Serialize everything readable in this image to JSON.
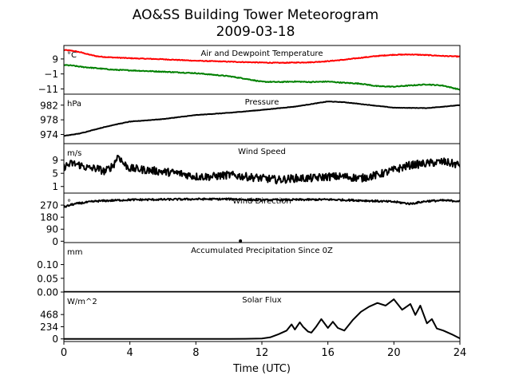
{
  "figure": {
    "title_line1": "AO&SS Building Tower Meteorogram",
    "title_line2": "2009-03-18",
    "xlabel": "Time (UTC)",
    "xticks": [
      0,
      4,
      8,
      12,
      16,
      20,
      24
    ],
    "xlim": [
      0,
      24
    ]
  },
  "chart_data": [
    {
      "type": "line",
      "title": "Air and Dewpoint Temperature",
      "unit": "°C",
      "ylim": [
        -14.5,
        18
      ],
      "yticks": [
        {
          "v": 9,
          "t": "9"
        },
        {
          "v": -1,
          "t": "−1"
        },
        {
          "v": -11,
          "t": "−11"
        }
      ],
      "grid": false,
      "series": [
        {
          "color": "#ff0000",
          "noise": 0.25,
          "x": [
            0,
            0.5,
            1,
            1.5,
            2,
            2.5,
            3,
            4,
            6,
            8,
            10,
            12,
            13,
            14,
            15,
            16,
            17,
            18,
            19,
            20,
            21,
            22,
            23,
            24
          ],
          "values": [
            15,
            14.5,
            13.5,
            12,
            10.8,
            10.3,
            10,
            9.5,
            8.8,
            7.8,
            7.2,
            6.6,
            6.4,
            6.6,
            6.8,
            7.5,
            8.5,
            9.8,
            11,
            11.8,
            12,
            11.6,
            11,
            10.6
          ]
        },
        {
          "color": "#008000",
          "noise": 0.3,
          "x": [
            0,
            0.5,
            1,
            2,
            3,
            4,
            6,
            8,
            9,
            10,
            11,
            12,
            13,
            14,
            15,
            16,
            17,
            18,
            19,
            20,
            21,
            22,
            23,
            24
          ],
          "values": [
            5,
            4.6,
            3.8,
            2.8,
            1.8,
            1.4,
            0.5,
            -0.5,
            -1.5,
            -2.5,
            -4.2,
            -6.2,
            -6.4,
            -6.1,
            -6.4,
            -6.1,
            -6.9,
            -7.5,
            -9.2,
            -9.5,
            -8.7,
            -8,
            -8.8,
            -11.5
          ]
        }
      ]
    },
    {
      "type": "line",
      "title": "Pressure",
      "unit": "hPa",
      "ylim": [
        971.5,
        985
      ],
      "yticks": [
        {
          "v": 982,
          "t": "982"
        },
        {
          "v": 978,
          "t": "978"
        },
        {
          "v": 974,
          "t": "974"
        }
      ],
      "grid": false,
      "series": [
        {
          "color": "#000000",
          "noise": 0.05,
          "x": [
            0,
            1,
            2,
            3,
            4,
            6,
            8,
            10,
            12,
            14,
            16,
            17,
            18,
            20,
            22,
            24
          ],
          "values": [
            973.6,
            974.3,
            975.5,
            976.6,
            977.5,
            978.2,
            979.3,
            979.9,
            980.7,
            981.6,
            983,
            982.8,
            982.3,
            981.3,
            981.2,
            982
          ]
        }
      ]
    },
    {
      "type": "line",
      "title": "Wind Speed",
      "unit": "m/s",
      "ylim": [
        -1,
        14
      ],
      "yticks": [
        {
          "v": 9,
          "t": "9"
        },
        {
          "v": 5,
          "t": "5"
        },
        {
          "v": 1,
          "t": "1"
        }
      ],
      "grid": false,
      "series": [
        {
          "color": "#000000",
          "noise": 1.2,
          "x": [
            0,
            0.5,
            1,
            1.5,
            2,
            2.5,
            3,
            3.3,
            3.6,
            4,
            5,
            6,
            7,
            8,
            9,
            10,
            11,
            12,
            13,
            14,
            15,
            16,
            17,
            18,
            19,
            20,
            21,
            22,
            23,
            24
          ],
          "values": [
            7,
            8,
            7.5,
            6.5,
            6.5,
            5.5,
            7.5,
            10.5,
            8,
            6.5,
            6,
            5.5,
            5,
            4,
            4,
            4.5,
            4,
            3.5,
            3,
            3.5,
            3.5,
            4,
            4,
            3.5,
            4.5,
            6,
            7.5,
            8,
            8.5,
            7.5
          ]
        }
      ]
    },
    {
      "type": "line",
      "title": "Wind Direction",
      "unit": "°",
      "ylim": [
        -10,
        360
      ],
      "yticks": [
        {
          "v": 270,
          "t": "270"
        },
        {
          "v": 180,
          "t": "180"
        },
        {
          "v": 90,
          "t": "90"
        },
        {
          "v": 0,
          "t": "0"
        }
      ],
      "grid": false,
      "series": [
        {
          "color": "#000000",
          "noise": 7,
          "x": [
            0,
            0.5,
            1,
            2,
            3,
            4,
            6,
            8,
            10,
            12,
            14,
            16,
            18,
            19,
            20,
            21,
            22,
            23,
            24
          ],
          "values": [
            255,
            275,
            285,
            300,
            305,
            310,
            312,
            315,
            315,
            308,
            310,
            312,
            305,
            300,
            295,
            280,
            300,
            305,
            300
          ]
        }
      ],
      "points": [
        {
          "x": 10.7,
          "y": 2
        }
      ]
    },
    {
      "type": "line",
      "title": "Accumulated Precipitation Since 0Z",
      "unit": "mm",
      "ylim": [
        0,
        0.18
      ],
      "yticks": [
        {
          "v": 0.1,
          "t": "0.10"
        },
        {
          "v": 0.05,
          "t": "0.05"
        },
        {
          "v": 0,
          "t": "0.00"
        }
      ],
      "grid": false,
      "series": [
        {
          "color": "#000000",
          "noise": 0,
          "x": [
            0,
            24
          ],
          "values": [
            0,
            0
          ]
        }
      ]
    },
    {
      "type": "line",
      "title": "Solar Flux",
      "unit": "W/m^2",
      "ylim": [
        -50,
        900
      ],
      "yticks": [
        {
          "v": 468,
          "t": "468"
        },
        {
          "v": 234,
          "t": "234"
        },
        {
          "v": 0,
          "t": "0"
        }
      ],
      "grid": false,
      "series": [
        {
          "color": "#000000",
          "noise": 0,
          "x": [
            0,
            10,
            11,
            12,
            12.5,
            13,
            13.5,
            13.8,
            14,
            14.3,
            14.5,
            14.8,
            15,
            15.3,
            15.6,
            16,
            16.3,
            16.6,
            17,
            17.5,
            18,
            18.5,
            19,
            19.5,
            20,
            20.5,
            21,
            21.3,
            21.6,
            22,
            22.3,
            22.6,
            23,
            23.5,
            24
          ],
          "values": [
            0,
            0,
            2,
            8,
            30,
            90,
            160,
            280,
            180,
            320,
            230,
            140,
            120,
            240,
            380,
            210,
            330,
            210,
            160,
            360,
            520,
            620,
            690,
            640,
            760,
            560,
            670,
            460,
            640,
            300,
            380,
            200,
            160,
            90,
            10
          ]
        }
      ]
    }
  ]
}
